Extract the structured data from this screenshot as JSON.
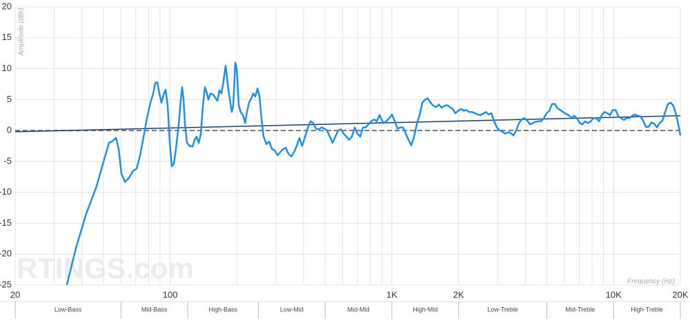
{
  "chart_data": {
    "type": "line",
    "y_label": "Amplitude (dBr)",
    "x_label": "Frequency (Hz)",
    "watermark": "RTINGS.com",
    "xscale": "log",
    "grid": true,
    "xlim": [
      20,
      20000
    ],
    "ylim": [
      -25,
      20
    ],
    "xticks": [
      20,
      100,
      {
        "value": 1000,
        "label": "1K"
      },
      {
        "value": 2000,
        "label": "2K"
      },
      {
        "value": 10000,
        "label": "10K"
      },
      {
        "value": 20000,
        "label": "20K"
      }
    ],
    "yticks": [
      -25,
      -20,
      -15,
      -10,
      -5,
      0,
      5,
      10,
      15,
      20
    ],
    "bands": [
      {
        "name": "Low-Bass",
        "range": [
          20,
          60
        ]
      },
      {
        "name": "Mid-Bass",
        "range": [
          60,
          120
        ]
      },
      {
        "name": "High-Bass",
        "range": [
          120,
          250
        ]
      },
      {
        "name": "Low-Mid",
        "range": [
          250,
          500
        ]
      },
      {
        "name": "Mid-Mid",
        "range": [
          500,
          1000
        ]
      },
      {
        "name": "High-Mid",
        "range": [
          1000,
          2000
        ]
      },
      {
        "name": "Low-Treble",
        "range": [
          2000,
          5000
        ]
      },
      {
        "name": "Mid-Treble",
        "range": [
          5000,
          10000
        ]
      },
      {
        "name": "High-Treble",
        "range": [
          10000,
          20000
        ]
      }
    ],
    "series": [
      {
        "color": "#1e8fe6",
        "width": 2.5,
        "x": [
          34.2,
          37.6,
          41.8,
          46.6,
          50.1,
          53.0,
          55.0,
          57.0,
          58.6,
          60.3,
          62.5,
          64.8,
          68.1,
          70.6,
          73.2,
          75.9,
          78.6,
          81.5,
          83.9,
          85.7,
          87.5,
          89.4,
          91.4,
          93.4,
          95.4,
          97.5,
          99.6,
          101.8,
          104.0,
          106.2,
          109.3,
          111.7,
          113.3,
          114.9,
          116.6,
          119.1,
          122.6,
          126.2,
          128.9,
          131.7,
          134.6,
          137.5,
          140.5,
          143.5,
          146.6,
          148.7,
          152.0,
          156.4,
          159.8,
          163.3,
          166.8,
          170.4,
          174.1,
          177.9,
          181.8,
          185.8,
          189.8,
          192.5,
          196.7,
          199.6,
          204,
          208,
          213,
          218,
          222,
          227,
          232,
          237,
          242,
          248,
          253,
          258,
          264,
          272,
          280,
          288,
          296,
          305,
          314,
          323,
          332,
          342,
          352,
          362,
          372,
          383,
          394,
          406,
          418,
          430,
          442,
          455,
          468,
          482,
          496,
          510,
          525,
          540,
          556,
          572,
          589,
          606,
          624,
          642,
          660,
          680,
          699,
          720,
          741,
          762,
          784,
          807,
          831,
          855,
          880,
          899,
          918,
          945,
          973,
          1001,
          1030,
          1060,
          1091,
          1122,
          1155,
          1188,
          1223,
          1259,
          1295,
          1333,
          1372,
          1411,
          1452,
          1495,
          1538,
          1583,
          1629,
          1676,
          1725,
          1775,
          1827,
          1880,
          1935,
          1992,
          2050,
          2110,
          2171,
          2234,
          2299,
          2366,
          2435,
          2506,
          2578,
          2653,
          2730,
          2810,
          2891,
          2975,
          3062,
          3151,
          3243,
          3337,
          3434,
          3534,
          3637,
          3743,
          3851,
          3963,
          4079,
          4197,
          4319,
          4445,
          4574,
          4708,
          4844,
          4985,
          5130,
          5279,
          5433,
          5591,
          5753,
          5921,
          6093,
          6270,
          6452,
          6640,
          6833,
          7032,
          7237,
          7447,
          7664,
          7887,
          8116,
          8352,
          8595,
          8845,
          9101,
          9366,
          9638,
          9918,
          10206,
          10503,
          10808,
          11122,
          11445,
          11776,
          12119,
          12471,
          12833,
          13205,
          13589,
          13984,
          14391,
          14809,
          15240,
          15683,
          16139,
          16608,
          17091,
          17587,
          18098,
          18623,
          19164,
          19720,
          20000
        ],
        "values": [
          -25,
          -19,
          -13.5,
          -9,
          -5,
          -2,
          -1.7,
          -1.2,
          -3,
          -7,
          -8.3,
          -7.8,
          -6.5,
          -6.2,
          -4,
          -1,
          2,
          4.5,
          6,
          7.7,
          7.8,
          6,
          4.5,
          5.8,
          6.6,
          4,
          -2,
          -5.8,
          -5.3,
          -3,
          1,
          5,
          7,
          5,
          1,
          -2,
          -2.5,
          -2.6,
          -1.5,
          -1,
          -2,
          -0.5,
          4,
          7,
          6,
          5,
          6,
          5.8,
          5.3,
          4.8,
          6.5,
          6,
          8,
          10.5,
          7.5,
          5,
          3,
          4,
          11,
          10,
          4,
          3,
          2.5,
          1.2,
          3,
          4.5,
          5.2,
          6,
          5.5,
          6.8,
          5.5,
          2,
          -1,
          -2.2,
          -1.8,
          -3,
          -3.2,
          -4,
          -3.5,
          -3,
          -2.8,
          -3.8,
          -4.2,
          -3.5,
          -2.5,
          -1.2,
          -2.5,
          -1,
          0.5,
          1.5,
          1.2,
          0.3,
          0.2,
          0.5,
          0.3,
          0,
          -1,
          -2,
          -1,
          0,
          0.2,
          -0.5,
          -1,
          -1.5,
          -1,
          0.5,
          -0.5,
          -1,
          0.5,
          0.5,
          1,
          1.5,
          1.8,
          1.5,
          2.5,
          1.8,
          1.2,
          1.5,
          2,
          2.6,
          1.5,
          0.3,
          0.5,
          0.5,
          -0.5,
          -1.5,
          -2.4,
          -1,
          1,
          2.5,
          4.5,
          5,
          5.2,
          4.5,
          4,
          3.8,
          4.2,
          3.7,
          4,
          4.1,
          3.8,
          3.5,
          2.8,
          3.2,
          3.5,
          3.2,
          3.3,
          3,
          3,
          2.8,
          2.6,
          2.5,
          2.7,
          3,
          2.6,
          2.8,
          1.5,
          0.5,
          0,
          -0.2,
          -0.5,
          -0.3,
          -0.4,
          -0.8,
          0,
          1.2,
          1.8,
          2,
          1.6,
          1,
          1.2,
          1.4,
          1.5,
          1.5,
          2,
          2.8,
          3.2,
          4.3,
          4.3,
          3.6,
          3.3,
          3,
          2.7,
          2.5,
          2,
          2.4,
          2,
          1.2,
          1,
          1.5,
          1.2,
          1.5,
          2,
          2,
          1.5,
          2.5,
          3,
          2.8,
          2.5,
          3.3,
          3.3,
          2.3,
          2,
          1.7,
          2,
          2,
          2.4,
          2.6,
          2.4,
          2.3,
          1.6,
          0.6,
          0.6,
          1.3,
          1.1,
          0.5,
          1.2,
          1.6,
          3,
          4.3,
          4.5,
          4,
          2.5,
          0.5,
          -0.8
        ]
      },
      {
        "color": "#1b3a66",
        "width": 1.5,
        "x": [
          20,
          20000
        ],
        "values": [
          -0.2,
          2.4
        ]
      },
      {
        "color": "#777777",
        "width": 2,
        "dash": true,
        "x": [
          20,
          20000
        ],
        "values": [
          0,
          0
        ]
      }
    ]
  }
}
